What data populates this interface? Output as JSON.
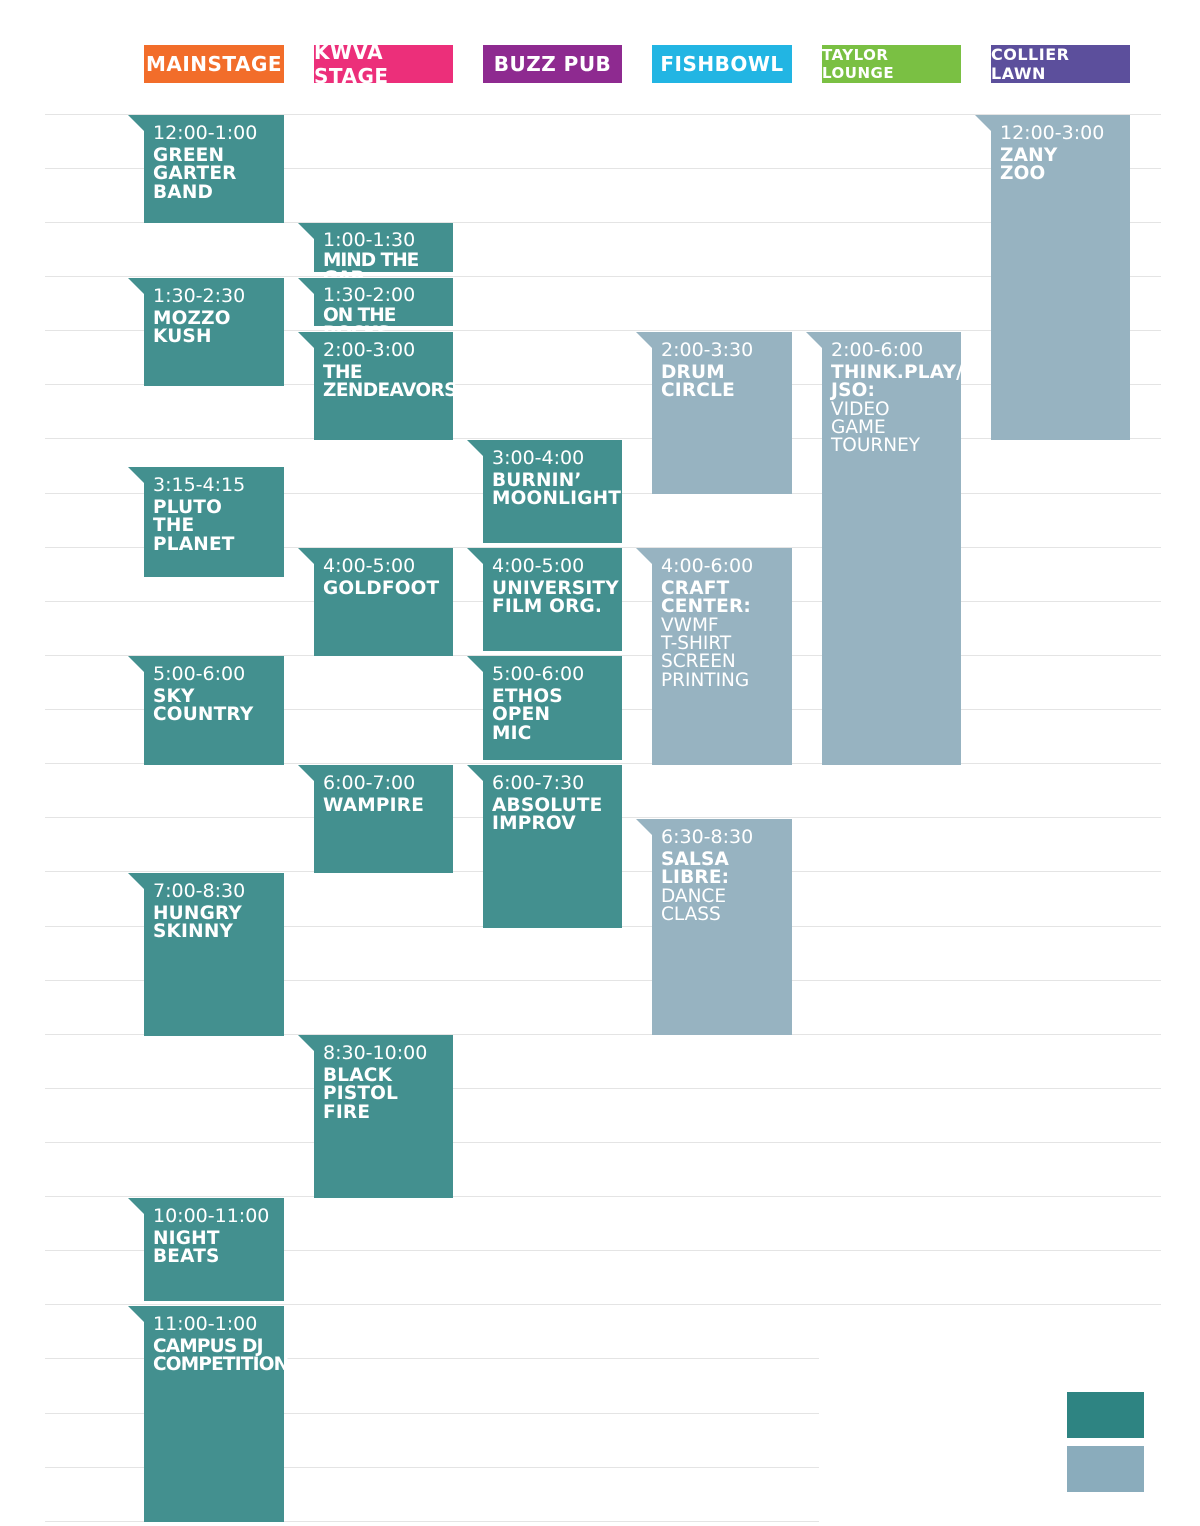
{
  "stages": [
    {
      "label": "MAINSTAGE",
      "color": "#f26d2a"
    },
    {
      "label": "KWVA STAGE",
      "color": "#ec2f7a"
    },
    {
      "label": "BUZZ PUB",
      "color": "#8e2a90"
    },
    {
      "label": "FISHBOWL",
      "color": "#22b5e3"
    },
    {
      "label": "TAYLOR LOUNGE",
      "color": "#7ac043"
    },
    {
      "label": "COLLIER LAWN",
      "color": "#5c4f9c"
    }
  ],
  "events": {
    "green_garter": {
      "time": "12:00-1:00",
      "name_lines": [
        "GREEN",
        "GARTER",
        "BAND"
      ]
    },
    "mozzo_kush": {
      "time": "1:30-2:30",
      "name_lines": [
        "MOZZO",
        "KUSH"
      ]
    },
    "pluto": {
      "time": "3:15-4:15",
      "name_lines": [
        "PLUTO",
        "THE PLANET"
      ]
    },
    "sky_country": {
      "time": "5:00-6:00",
      "name_lines": [
        "SKY",
        "COUNTRY"
      ]
    },
    "hungry_skinny": {
      "time": "7:00-8:30",
      "name_lines": [
        "HUNGRY",
        "SKINNY"
      ]
    },
    "night_beats": {
      "time": "10:00-11:00",
      "name_lines": [
        "NIGHT",
        "BEATS"
      ]
    },
    "campus_dj": {
      "time": "11:00-1:00",
      "name_lines": [
        "CAMPUS DJ",
        "COMPETITION"
      ]
    },
    "mind_the_gap": {
      "time": "1:00-1:30",
      "name_lines": [
        "MIND THE GAP"
      ]
    },
    "on_the_rocks": {
      "time": "1:30-2:00",
      "name_lines": [
        "ON THE ROCKS"
      ]
    },
    "zendeavors": {
      "time": "2:00-3:00",
      "name_lines": [
        "THE",
        "ZENDEAVORS"
      ]
    },
    "goldfoot": {
      "time": "4:00-5:00",
      "name_lines": [
        "GOLDFOOT"
      ]
    },
    "wampire": {
      "time": "6:00-7:00",
      "name_lines": [
        "WAMPIRE"
      ]
    },
    "black_pistol": {
      "time": "8:30-10:00",
      "name_lines": [
        "BLACK",
        "PISTOL",
        "FIRE"
      ]
    },
    "burnin": {
      "time": "3:00-4:00",
      "name_lines": [
        "BURNIN’",
        "MOONLIGHT"
      ]
    },
    "ufo": {
      "time": "4:00-5:00",
      "name_lines": [
        "UNIVERSITY",
        "FILM ORG."
      ]
    },
    "ethos": {
      "time": "5:00-6:00",
      "name_lines": [
        "ETHOS",
        "OPEN",
        "MIC"
      ]
    },
    "absolute_improv": {
      "time": "6:00-7:30",
      "name_lines": [
        "ABSOLUTE",
        "IMPROV"
      ]
    },
    "drum_circle": {
      "time": "2:00-3:30",
      "name_lines": [
        "DRUM",
        "CIRCLE"
      ]
    },
    "craft_center": {
      "time": "4:00-6:00",
      "name_lines": [
        "CRAFT",
        "CENTER:"
      ],
      "sub_lines": [
        "VWMF",
        "T-SHIRT",
        "SCREEN",
        "PRINTING"
      ]
    },
    "salsa": {
      "time": "6:30-8:30",
      "name_lines": [
        "SALSA",
        "LIBRE:"
      ],
      "sub_lines": [
        "DANCE",
        "CLASS"
      ]
    },
    "think_play": {
      "time": "2:00-6:00",
      "name_lines": [
        "THINK.PLAY/",
        "JSO:"
      ],
      "sub_lines": [
        "VIDEO",
        "GAME",
        "TOURNEY"
      ]
    },
    "zany_zoo": {
      "time": "12:00-3:00",
      "name_lines": [
        "ZANY",
        "ZOO"
      ]
    }
  },
  "legend": {
    "colors": [
      "#2e8482",
      "#8aacbc"
    ]
  }
}
